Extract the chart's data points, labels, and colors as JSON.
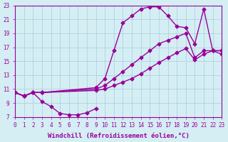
{
  "bg_color": "#d4eef4",
  "grid_color": "#aaccdd",
  "line_color": "#990099",
  "xlim": [
    0,
    23
  ],
  "ylim": [
    7,
    23
  ],
  "xticks": [
    0,
    1,
    2,
    3,
    4,
    5,
    6,
    7,
    8,
    9,
    10,
    11,
    12,
    13,
    14,
    15,
    16,
    17,
    18,
    19,
    20,
    21,
    22,
    23
  ],
  "yticks": [
    7,
    9,
    11,
    13,
    15,
    17,
    19,
    21,
    23
  ],
  "xlabel": "Windchill (Refroidissement éolien,°C)",
  "marker": "D",
  "markersize": 2.5,
  "linewidth": 1.0,
  "tick_fontsize": 5.5,
  "label_fontsize": 6.5,
  "curve1_x": [
    0,
    1,
    2,
    3,
    4,
    5,
    6,
    7,
    8,
    9
  ],
  "curve1_y": [
    10.5,
    10.0,
    10.5,
    9.2,
    8.5,
    7.5,
    7.3,
    7.3,
    7.6,
    8.2
  ],
  "curve2_x": [
    0,
    1,
    2,
    3,
    9,
    10,
    11,
    12,
    13,
    14,
    15,
    16,
    17,
    18,
    19,
    20,
    21,
    22,
    23
  ],
  "curve2_y": [
    10.5,
    10.0,
    10.5,
    10.5,
    10.8,
    11.0,
    11.5,
    12.0,
    12.5,
    13.2,
    14.0,
    14.8,
    15.5,
    16.2,
    16.8,
    15.2,
    16.0,
    16.5,
    16.5
  ],
  "curve3_x": [
    0,
    1,
    2,
    3,
    9,
    10,
    11,
    12,
    13,
    14,
    15,
    16,
    17,
    18,
    19,
    20,
    21,
    22,
    23
  ],
  "curve3_y": [
    10.5,
    10.0,
    10.5,
    10.5,
    11.0,
    11.5,
    12.5,
    13.5,
    14.5,
    15.5,
    16.5,
    17.5,
    18.0,
    18.5,
    19.0,
    15.5,
    16.5,
    16.5,
    16.5
  ],
  "curve4_x": [
    0,
    1,
    2,
    3,
    9,
    10,
    11,
    12,
    13,
    14,
    15,
    16,
    17,
    18,
    19,
    20,
    21,
    22,
    23
  ],
  "curve4_y": [
    10.5,
    10.0,
    10.5,
    10.5,
    11.2,
    12.5,
    16.5,
    20.5,
    21.5,
    22.5,
    22.8,
    22.8,
    21.5,
    20.0,
    19.8,
    17.5,
    22.5,
    16.5,
    16.0
  ]
}
